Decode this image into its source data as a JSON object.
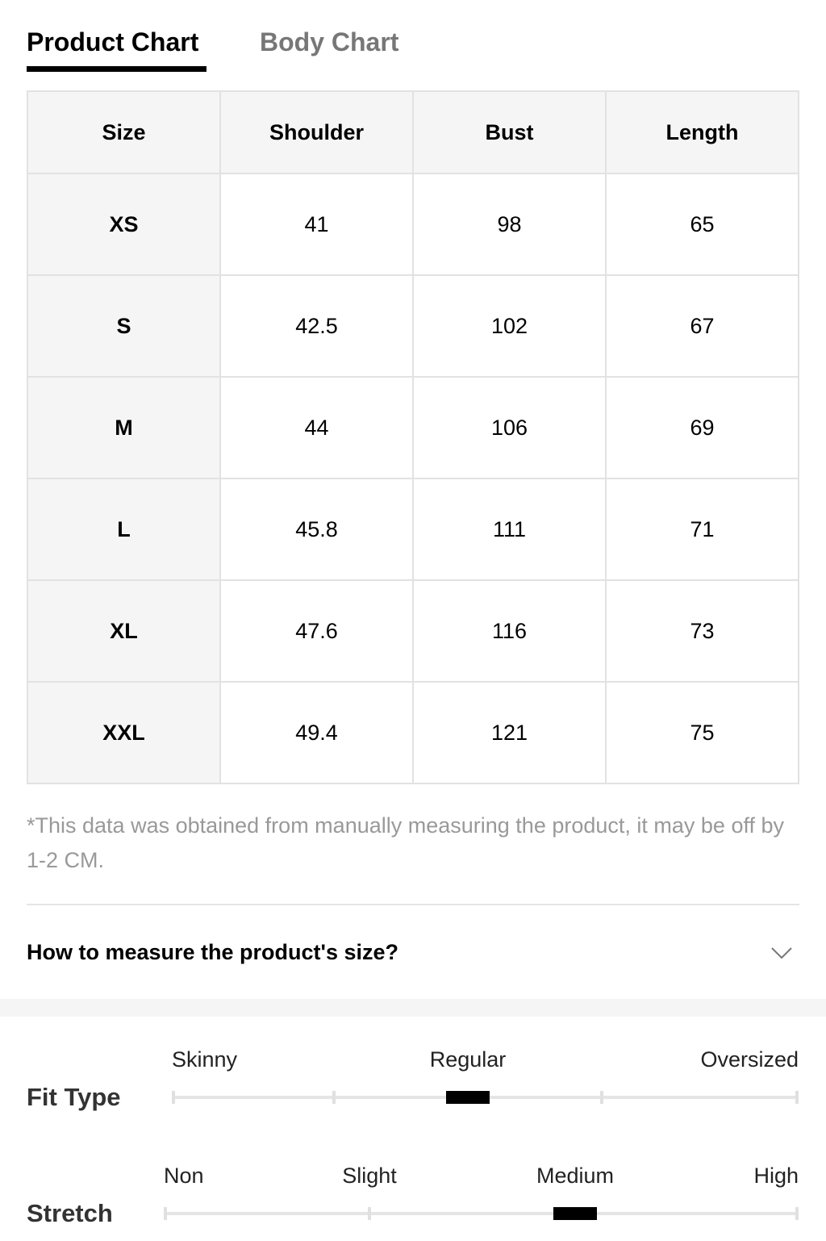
{
  "tabs": [
    "Product Chart",
    "Body Chart"
  ],
  "table": {
    "header": [
      "Size",
      "Shoulder",
      "Bust",
      "Length"
    ],
    "rows": [
      [
        "XS",
        "41",
        "98",
        "65"
      ],
      [
        "S",
        "42.5",
        "102",
        "67"
      ],
      [
        "M",
        "44",
        "106",
        "69"
      ],
      [
        "L",
        "45.8",
        "111",
        "71"
      ],
      [
        "XL",
        "47.6",
        "116",
        "73"
      ],
      [
        "XXL",
        "49.4",
        "121",
        "75"
      ]
    ]
  },
  "note": "*This data was obtained from manually measuring the product, it may be off by 1-2 CM.",
  "accordion": {
    "title": "How to measure the product's size?"
  },
  "scales": [
    {
      "title": "Fit Type",
      "labels": [
        "Skinny",
        "Regular",
        "Oversized"
      ],
      "selected": 1
    },
    {
      "title": "Stretch",
      "labels": [
        "Non",
        "Slight",
        "Medium",
        "High"
      ],
      "selected": 2
    }
  ]
}
